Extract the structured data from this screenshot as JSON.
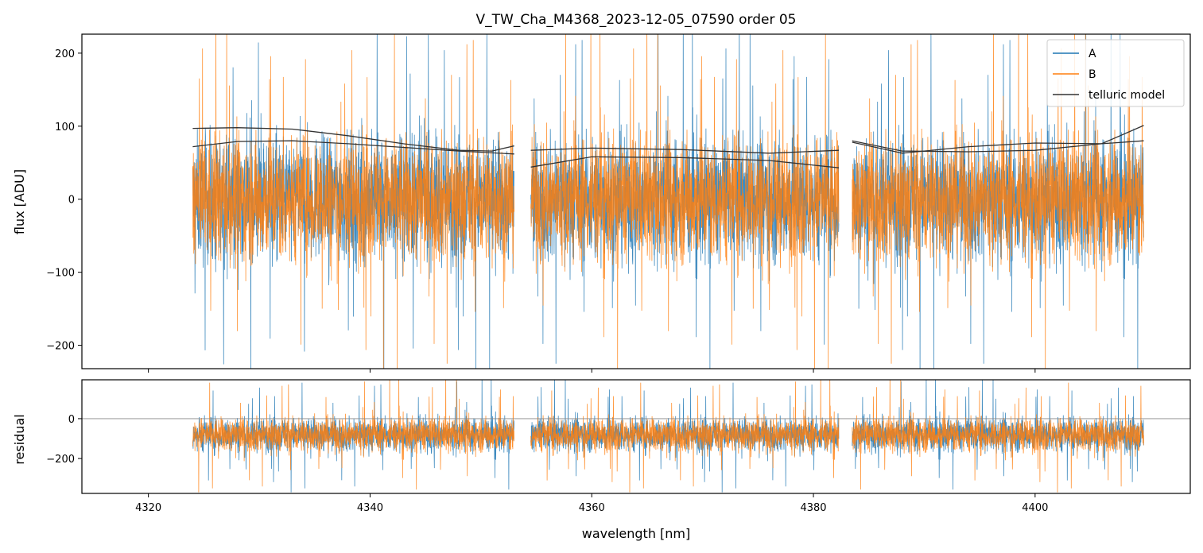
{
  "chart_data": {
    "type": "line",
    "title": "V_TW_Cha_M4368_2023-12-05_07590  order 05",
    "xlabel": "wavelength [nm]",
    "xlim": [
      4314.0,
      4414.0
    ],
    "xticks": [
      4320,
      4340,
      4360,
      4380,
      4400
    ],
    "segments": [
      [
        4324.0,
        4353.0
      ],
      [
        4354.5,
        4382.3
      ],
      [
        4383.5,
        4409.8
      ]
    ],
    "colors": {
      "A": "#1f77b4",
      "B": "#ff7f0e",
      "telluric": "#333333",
      "zero_line": "#888888"
    },
    "top_panel": {
      "ylabel": "flux [ADU]",
      "ylim": [
        -232,
        226
      ],
      "yticks": [
        200,
        100,
        0,
        -100,
        -200
      ],
      "ytick_labels": [
        "200",
        "100",
        "0",
        "−100",
        "−200"
      ],
      "noise": {
        "center": 0,
        "typical_halfwidth": 110,
        "spike_max": 260
      },
      "legend": {
        "position": "top-right",
        "entries": [
          {
            "label": "A",
            "color": "#1f77b4"
          },
          {
            "label": "B",
            "color": "#ff7f0e"
          },
          {
            "label": "telluric model",
            "color": "#333333"
          }
        ]
      },
      "telluric_models": [
        [
          {
            "x": [
              4324.0,
              4328.0,
              4333.0,
              4338.0,
              4343.0,
              4348.0,
              4351.0,
              4353.0
            ],
            "y": [
              97,
              98,
              96,
              87,
              76,
              67,
              66,
              73
            ]
          },
          {
            "x": [
              4354.5,
              4360.0,
              4368.0,
              4376.0,
              4382.3
            ],
            "y": [
              67,
              70,
              68,
              63,
              67
            ]
          },
          {
            "x": [
              4383.5,
              4388.0,
              4394.0,
              4400.0,
              4406.0,
              4409.8
            ],
            "y": [
              80,
              66,
              65,
              67,
              76,
              101
            ]
          }
        ],
        [
          {
            "x": [
              4324.0,
              4328.0,
              4333.0,
              4338.0,
              4343.0,
              4348.0,
              4353.0
            ],
            "y": [
              72,
              79,
              80,
              76,
              71,
              66,
              62
            ]
          },
          {
            "x": [
              4354.5,
              4360.0,
              4368.0,
              4376.0,
              4382.3
            ],
            "y": [
              44,
              58,
              57,
              53,
              43
            ]
          },
          {
            "x": [
              4383.5,
              4388.0,
              4394.0,
              4400.0,
              4406.0,
              4409.8
            ],
            "y": [
              78,
              63,
              72,
              77,
              76,
              80
            ]
          }
        ]
      ]
    },
    "bottom_panel": {
      "ylabel": "residual",
      "ylim": [
        -375,
        195
      ],
      "yticks": [
        0,
        -200
      ],
      "ytick_labels": [
        "0",
        "−200"
      ],
      "zero_line": 0,
      "noise": {
        "center": -80,
        "typical_halfwidth": 110,
        "spike_max": 300
      }
    }
  }
}
